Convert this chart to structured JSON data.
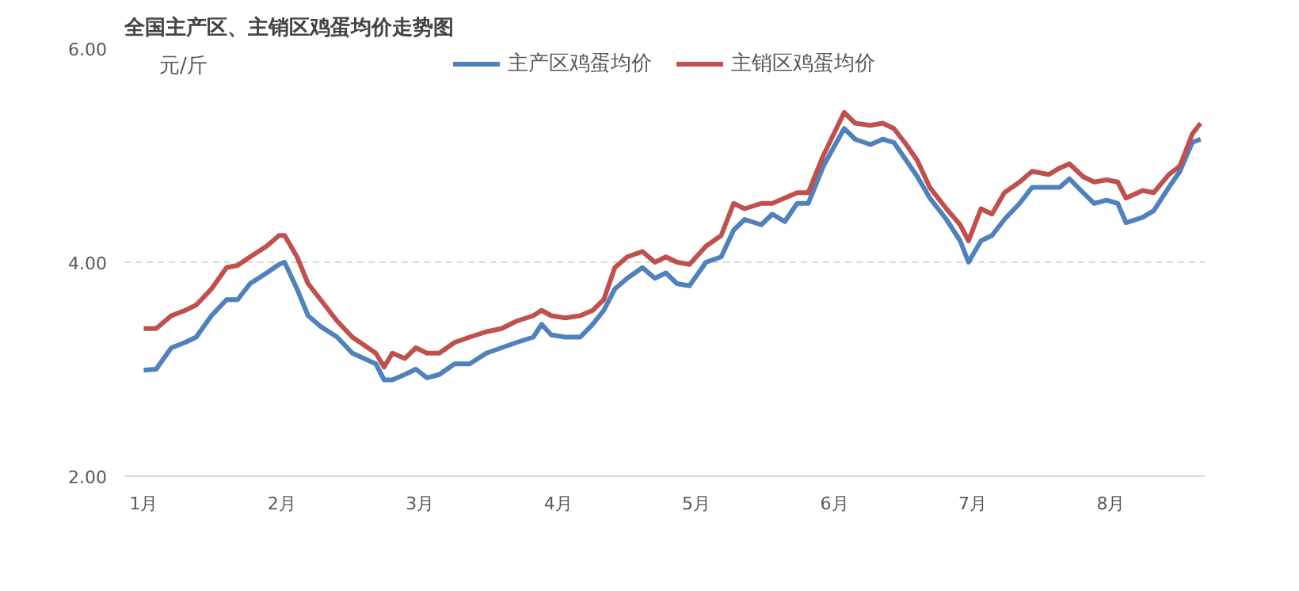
{
  "chart_data": {
    "type": "line",
    "title": "全国主产区、主销区鸡蛋均价走势图",
    "annotations": [
      "元/斤"
    ],
    "x": [
      1.0,
      1.09,
      1.2,
      1.3,
      1.38,
      1.49,
      1.6,
      1.68,
      1.77,
      1.89,
      1.98,
      2.02,
      2.11,
      2.19,
      2.28,
      2.4,
      2.51,
      2.68,
      2.74,
      2.8,
      2.89,
      2.97,
      3.05,
      3.14,
      3.25,
      3.36,
      3.48,
      3.59,
      3.7,
      3.82,
      3.88,
      3.95,
      4.05,
      4.16,
      4.25,
      4.33,
      4.41,
      4.5,
      4.61,
      4.7,
      4.78,
      4.86,
      4.95,
      5.07,
      5.18,
      5.27,
      5.35,
      5.47,
      5.55,
      5.64,
      5.73,
      5.81,
      5.92,
      6.07,
      6.15,
      6.26,
      6.35,
      6.43,
      6.52,
      6.6,
      6.69,
      6.81,
      6.91,
      6.97,
      7.06,
      7.14,
      7.23,
      7.34,
      7.43,
      7.55,
      7.63,
      7.7,
      7.8,
      7.88,
      7.97,
      8.05,
      8.11,
      8.23,
      8.31,
      8.42,
      8.5,
      8.59,
      8.65
    ],
    "series": [
      {
        "name": "主产区鸡蛋均价",
        "color": "#4f81bd",
        "values": [
          2.99,
          3.0,
          3.2,
          3.25,
          3.3,
          3.5,
          3.65,
          3.65,
          3.8,
          3.9,
          3.98,
          4.0,
          3.75,
          3.5,
          3.4,
          3.3,
          3.15,
          3.05,
          2.9,
          2.9,
          2.95,
          3.0,
          2.92,
          2.95,
          3.05,
          3.05,
          3.15,
          3.2,
          3.25,
          3.3,
          3.42,
          3.32,
          3.3,
          3.3,
          3.42,
          3.55,
          3.75,
          3.85,
          3.95,
          3.85,
          3.9,
          3.8,
          3.78,
          4.0,
          4.05,
          4.3,
          4.4,
          4.35,
          4.45,
          4.38,
          4.55,
          4.55,
          4.9,
          5.25,
          5.15,
          5.1,
          5.15,
          5.12,
          4.95,
          4.8,
          4.6,
          4.4,
          4.2,
          4.0,
          4.2,
          4.25,
          4.4,
          4.55,
          4.7,
          4.7,
          4.7,
          4.78,
          4.65,
          4.55,
          4.58,
          4.55,
          4.37,
          4.42,
          4.48,
          4.7,
          4.85,
          5.12,
          5.15
        ]
      },
      {
        "name": "主销区鸡蛋均价",
        "color": "#c0504d",
        "values": [
          3.38,
          3.38,
          3.5,
          3.55,
          3.6,
          3.75,
          3.95,
          3.97,
          4.05,
          4.15,
          4.25,
          4.25,
          4.05,
          3.8,
          3.65,
          3.45,
          3.3,
          3.15,
          3.02,
          3.15,
          3.1,
          3.2,
          3.15,
          3.15,
          3.25,
          3.3,
          3.35,
          3.38,
          3.45,
          3.5,
          3.55,
          3.5,
          3.48,
          3.5,
          3.55,
          3.65,
          3.95,
          4.05,
          4.1,
          4.0,
          4.05,
          4.0,
          3.98,
          4.15,
          4.25,
          4.55,
          4.5,
          4.55,
          4.55,
          4.6,
          4.65,
          4.65,
          5.0,
          5.4,
          5.3,
          5.28,
          5.3,
          5.25,
          5.1,
          4.95,
          4.7,
          4.5,
          4.35,
          4.2,
          4.5,
          4.45,
          4.65,
          4.75,
          4.85,
          4.82,
          4.88,
          4.92,
          4.8,
          4.75,
          4.77,
          4.75,
          4.6,
          4.67,
          4.65,
          4.82,
          4.9,
          5.2,
          5.3
        ]
      }
    ],
    "xlim": [
      0.86,
      8.68
    ],
    "xticks": [
      {
        "value": 1,
        "label": "1月"
      },
      {
        "value": 2,
        "label": "2月"
      },
      {
        "value": 3,
        "label": "3月"
      },
      {
        "value": 4,
        "label": "4月"
      },
      {
        "value": 5,
        "label": "5月"
      },
      {
        "value": 6,
        "label": "6月"
      },
      {
        "value": 7,
        "label": "7月"
      },
      {
        "value": 8,
        "label": "8月"
      }
    ],
    "ylim": [
      2,
      6
    ],
    "yticks": [
      {
        "value": 2,
        "label": "2.00"
      },
      {
        "value": 4,
        "label": "4.00"
      },
      {
        "value": 6,
        "label": "6.00"
      }
    ],
    "grid": "y",
    "legend": "top",
    "line_style": "solid",
    "marker": "none"
  }
}
